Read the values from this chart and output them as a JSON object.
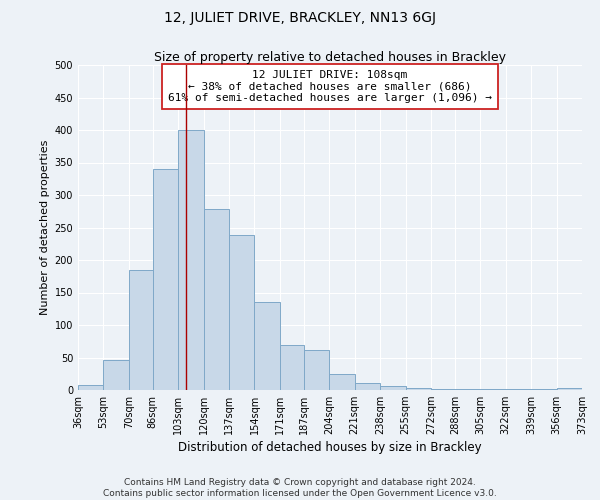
{
  "title": "12, JULIET DRIVE, BRACKLEY, NN13 6GJ",
  "subtitle": "Size of property relative to detached houses in Brackley",
  "xlabel": "Distribution of detached houses by size in Brackley",
  "ylabel": "Number of detached properties",
  "bar_color": "#c8d8e8",
  "bar_edge_color": "#7fa8c8",
  "bar_edge_width": 0.7,
  "bins": [
    36,
    53,
    70,
    86,
    103,
    120,
    137,
    154,
    171,
    187,
    204,
    221,
    238,
    255,
    272,
    288,
    305,
    322,
    339,
    356,
    373
  ],
  "values": [
    8,
    46,
    184,
    340,
    400,
    278,
    239,
    135,
    69,
    61,
    25,
    11,
    6,
    3,
    2,
    2,
    2,
    2,
    2,
    3
  ],
  "property_size": 108,
  "marker_line_color": "#aa0000",
  "annotation_line1": "12 JULIET DRIVE: 108sqm",
  "annotation_line2": "← 38% of detached houses are smaller (686)",
  "annotation_line3": "61% of semi-detached houses are larger (1,096) →",
  "annotation_box_color": "#ffffff",
  "annotation_box_edge_color": "#cc2222",
  "ylim": [
    0,
    500
  ],
  "yticks": [
    0,
    50,
    100,
    150,
    200,
    250,
    300,
    350,
    400,
    450,
    500
  ],
  "tick_labels": [
    "36sqm",
    "53sqm",
    "70sqm",
    "86sqm",
    "103sqm",
    "120sqm",
    "137sqm",
    "154sqm",
    "171sqm",
    "187sqm",
    "204sqm",
    "221sqm",
    "238sqm",
    "255sqm",
    "272sqm",
    "288sqm",
    "305sqm",
    "322sqm",
    "339sqm",
    "356sqm",
    "373sqm"
  ],
  "footer_line1": "Contains HM Land Registry data © Crown copyright and database right 2024.",
  "footer_line2": "Contains public sector information licensed under the Open Government Licence v3.0.",
  "background_color": "#edf2f7",
  "grid_color": "#ffffff",
  "title_fontsize": 10,
  "subtitle_fontsize": 9,
  "xlabel_fontsize": 8.5,
  "ylabel_fontsize": 8,
  "tick_fontsize": 7,
  "annotation_fontsize": 8,
  "footer_fontsize": 6.5
}
